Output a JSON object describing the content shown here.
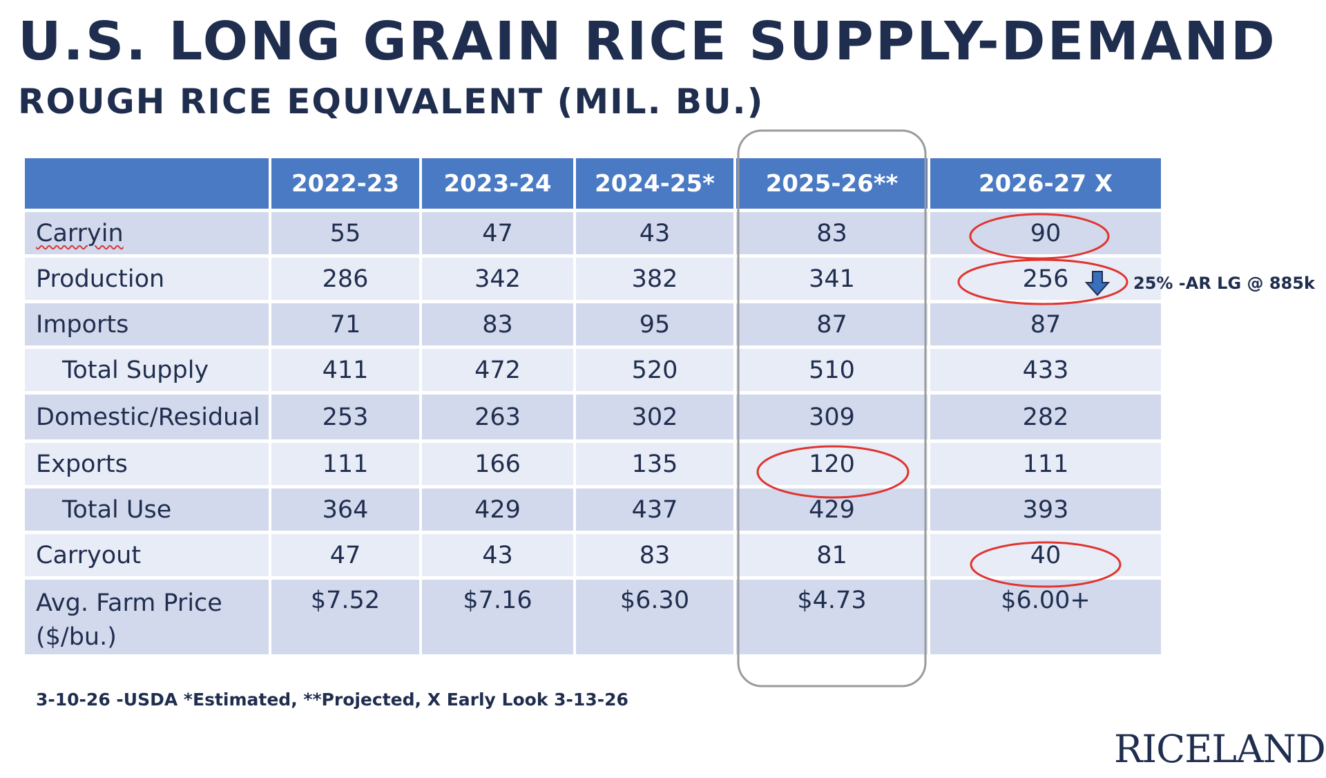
{
  "header": {
    "title": "U.S. LONG GRAIN RICE SUPPLY-DEMAND",
    "subtitle": "ROUGH RICE EQUIVALENT (MIL. BU.)"
  },
  "chart_data": {
    "type": "table",
    "columns": [
      "",
      "2022-23",
      "2023-24",
      "2024-25*",
      "2025-26**",
      "2026-27 X"
    ],
    "rows": [
      {
        "label": "Carryin",
        "values": [
          "55",
          "47",
          "43",
          "83",
          "90"
        ]
      },
      {
        "label": "Production",
        "values": [
          "286",
          "342",
          "382",
          "341",
          "256"
        ]
      },
      {
        "label": "Imports",
        "values": [
          "71",
          "83",
          "95",
          "87",
          "87"
        ]
      },
      {
        "label": "Total Supply",
        "values": [
          "411",
          "472",
          "520",
          "510",
          "433"
        ]
      },
      {
        "label": "Domestic/Residual",
        "values": [
          "253",
          "263",
          "302",
          "309",
          "282"
        ]
      },
      {
        "label": "Exports",
        "values": [
          "111",
          "166",
          "135",
          "120",
          "111"
        ]
      },
      {
        "label": "Total Use",
        "values": [
          "364",
          "429",
          "437",
          "429",
          "393"
        ]
      },
      {
        "label": "Carryout",
        "values": [
          "47",
          "43",
          "83",
          "81",
          "40"
        ]
      },
      {
        "label": "Avg. Farm Price ($/bu.)",
        "values": [
          "$7.52",
          "$7.16",
          "$6.30",
          "$4.73",
          "$6.00+"
        ]
      }
    ],
    "annotations": {
      "production_note": "25% -AR LG @ 885k",
      "circled": [
        "2026-27 X Carryin",
        "2026-27 X Production",
        "2025-26** Exports",
        "2026-27 X Carryout"
      ],
      "highlighted_column": "2025-26**"
    }
  },
  "colors": {
    "header_bg": "#4a7ac4",
    "row_dark": "#d2d9ec",
    "row_light": "#e8ecf6",
    "text": "#1f2d4e",
    "circle": "#e0342f",
    "column_outline": "#9a9a9a"
  },
  "icons": {
    "down_arrow": "arrow-down-icon"
  },
  "footnote": "3-10-26 -USDA  *Estimated, **Projected, X Early Look 3-13-26",
  "logo": {
    "text": "RICELAND"
  }
}
